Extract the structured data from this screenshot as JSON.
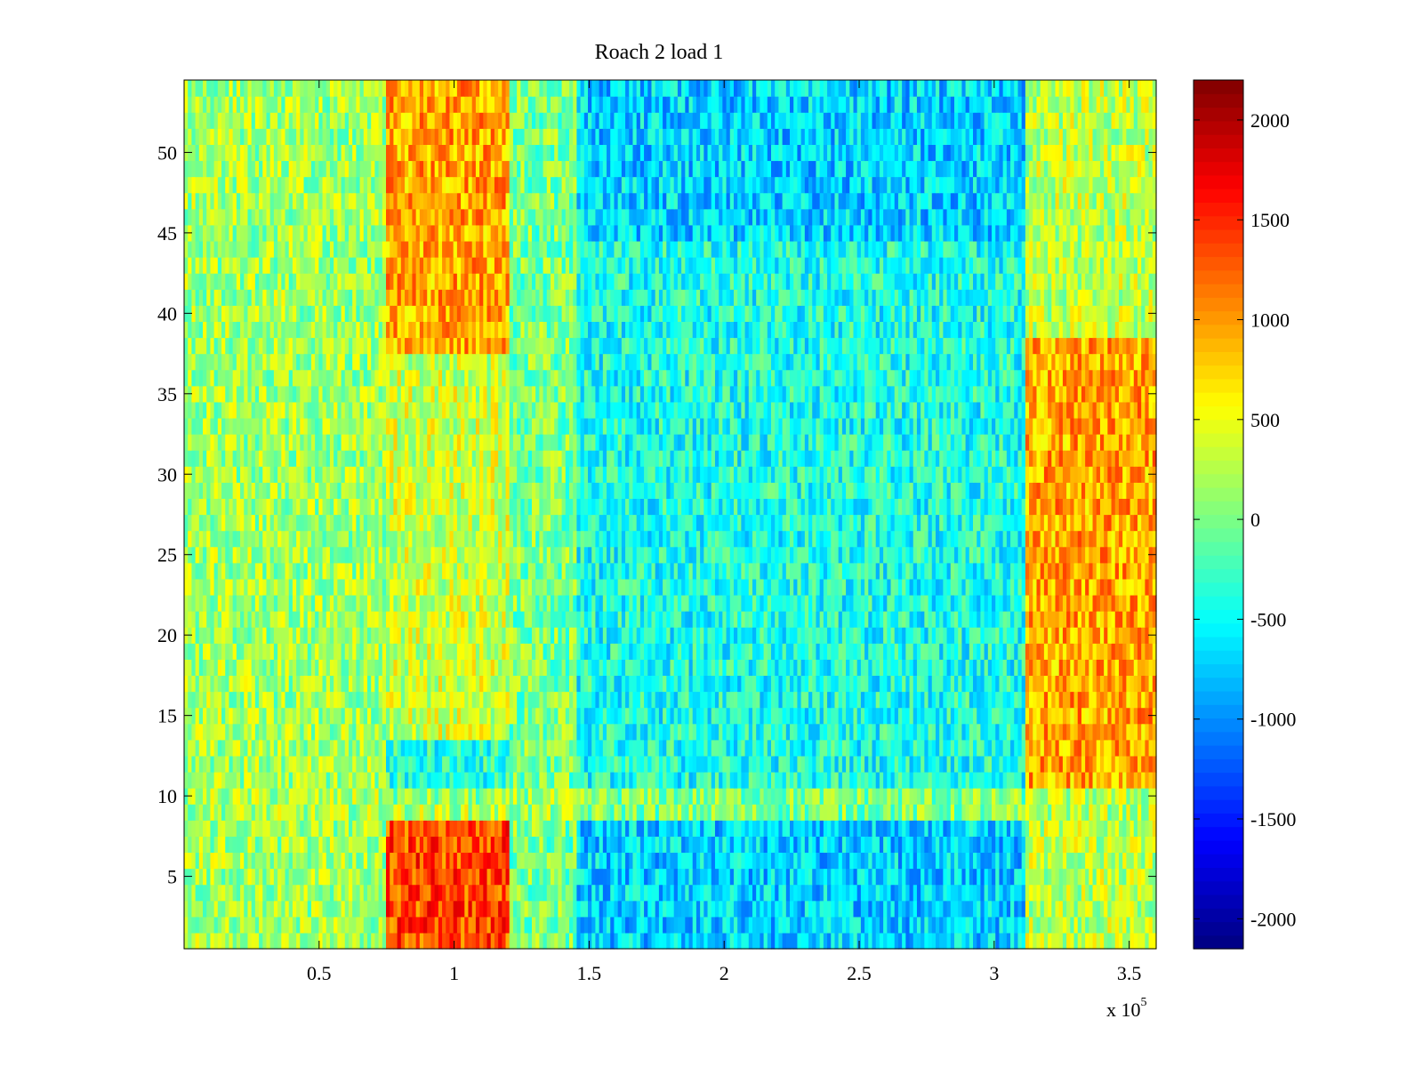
{
  "chart_data": {
    "type": "heatmap",
    "title": "Roach 2 load 1",
    "xlabel": "",
    "ylabel": "",
    "x_range": [
      0,
      360000
    ],
    "y_range": [
      0.5,
      54.5
    ],
    "x_ticks": [
      {
        "value": 50000,
        "label": "0.5"
      },
      {
        "value": 100000,
        "label": "1"
      },
      {
        "value": 150000,
        "label": "1.5"
      },
      {
        "value": 200000,
        "label": "2"
      },
      {
        "value": 250000,
        "label": "2.5"
      },
      {
        "value": 300000,
        "label": "3"
      },
      {
        "value": 350000,
        "label": "3.5"
      }
    ],
    "x_multiplier_base": "x 10",
    "x_multiplier_exponent": "5",
    "y_ticks": [
      {
        "value": 5,
        "label": "5"
      },
      {
        "value": 10,
        "label": "10"
      },
      {
        "value": 15,
        "label": "15"
      },
      {
        "value": 20,
        "label": "20"
      },
      {
        "value": 25,
        "label": "25"
      },
      {
        "value": 30,
        "label": "30"
      },
      {
        "value": 35,
        "label": "35"
      },
      {
        "value": 40,
        "label": "40"
      },
      {
        "value": 45,
        "label": "45"
      },
      {
        "value": 50,
        "label": "50"
      }
    ],
    "colorbar": {
      "colormap": "jet",
      "range": [
        -2150,
        2200
      ],
      "ticks": [
        {
          "value": 2000,
          "label": "2000"
        },
        {
          "value": 1500,
          "label": "1500"
        },
        {
          "value": 1000,
          "label": "1000"
        },
        {
          "value": 500,
          "label": "500"
        },
        {
          "value": 0,
          "label": "0"
        },
        {
          "value": -500,
          "label": "-500"
        },
        {
          "value": -1000,
          "label": "-1000"
        },
        {
          "value": -1500,
          "label": "-1500"
        },
        {
          "value": -2000,
          "label": "-2000"
        }
      ]
    },
    "rows": 54,
    "approx_pattern": {
      "description_bands": [
        {
          "x_from": 0,
          "x_to": 75000,
          "rows": "all",
          "typical_value": 150
        },
        {
          "x_from": 75000,
          "x_to": 120000,
          "rows": "1-8",
          "typical_value": 1500
        },
        {
          "x_from": 75000,
          "x_to": 120000,
          "rows": "38-54",
          "typical_value": 1000
        },
        {
          "x_from": 120000,
          "x_to": 312000,
          "rows": "all",
          "typical_value": -450
        },
        {
          "x_from": 312000,
          "x_to": 360000,
          "rows": "11-38",
          "typical_value": 950
        },
        {
          "x_from": 312000,
          "x_to": 360000,
          "rows": "1-9, 39-54",
          "typical_value": 300
        }
      ]
    }
  }
}
